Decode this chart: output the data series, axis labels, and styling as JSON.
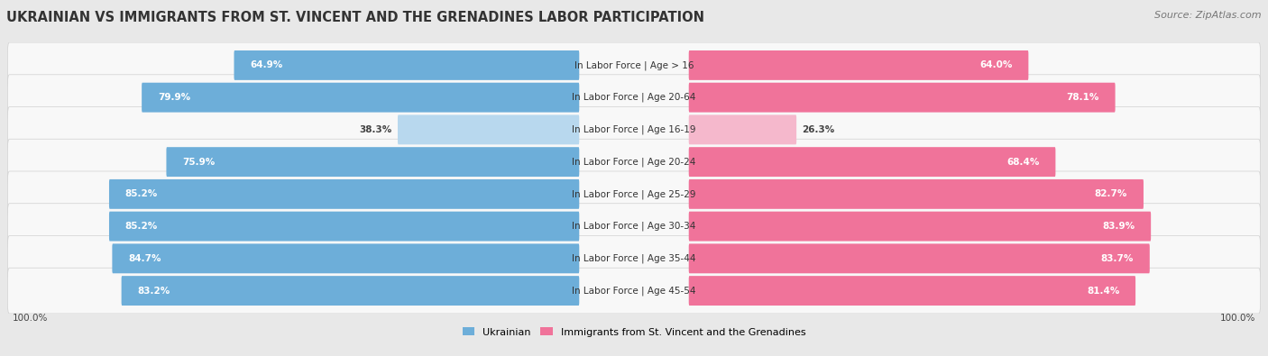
{
  "title": "UKRAINIAN VS IMMIGRANTS FROM ST. VINCENT AND THE GRENADINES LABOR PARTICIPATION",
  "source": "Source: ZipAtlas.com",
  "categories": [
    "In Labor Force | Age > 16",
    "In Labor Force | Age 20-64",
    "In Labor Force | Age 16-19",
    "In Labor Force | Age 20-24",
    "In Labor Force | Age 25-29",
    "In Labor Force | Age 30-34",
    "In Labor Force | Age 35-44",
    "In Labor Force | Age 45-54"
  ],
  "ukrainian_values": [
    64.9,
    79.9,
    38.3,
    75.9,
    85.2,
    85.2,
    84.7,
    83.2
  ],
  "immigrant_values": [
    64.0,
    78.1,
    26.3,
    68.4,
    82.7,
    83.9,
    83.7,
    81.4
  ],
  "ukrainian_color": "#6daed9",
  "ukrainian_color_light": "#b8d8ee",
  "immigrant_color": "#f0739a",
  "immigrant_color_light": "#f5b8cc",
  "bg_color": "#e8e8e8",
  "row_bg": "#f8f8f8",
  "row_border": "#d0d0d0",
  "bar_max": 100.0,
  "legend_ukrainian": "Ukrainian",
  "legend_immigrant": "Immigrants from St. Vincent and the Grenadines",
  "title_fontsize": 10.5,
  "source_fontsize": 8,
  "label_fontsize": 7.5,
  "value_fontsize": 7.5,
  "footer_value": "100.0%"
}
